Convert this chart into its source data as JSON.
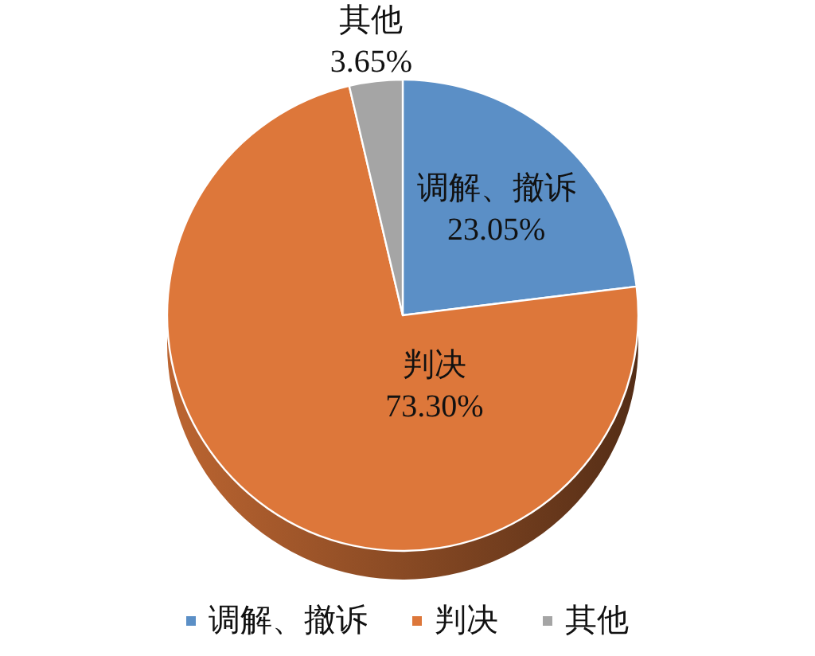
{
  "chart_data": {
    "type": "pie",
    "categories": [
      "调解、撤诉",
      "判决",
      "其他"
    ],
    "values": [
      23.05,
      73.3,
      3.65
    ],
    "value_labels": [
      "23.05%",
      "73.30%",
      "3.65%"
    ],
    "colors": [
      "#5b8fc6",
      "#dd773a",
      "#a5a5a5"
    ],
    "legend": "bottom"
  }
}
